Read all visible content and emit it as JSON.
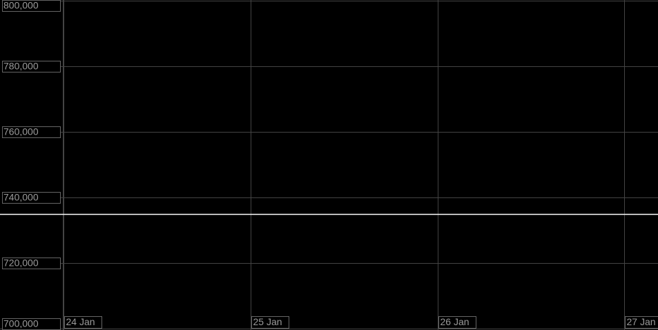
{
  "chart_data": {
    "type": "line",
    "x": [
      23.66,
      27.18
    ],
    "series": [
      {
        "color": "#ffffff",
        "values": [
          735000,
          735000
        ]
      }
    ],
    "xlim": [
      23.66,
      27.18
    ],
    "xticks": [
      {
        "value": 24,
        "label": "24 Jan"
      },
      {
        "value": 25,
        "label": "25 Jan"
      },
      {
        "value": 26,
        "label": "26 Jan"
      },
      {
        "value": 27,
        "label": "27 Jan"
      }
    ],
    "ylim": [
      700000,
      800000
    ],
    "yticks": [
      {
        "value": 700000,
        "label": "700,000"
      },
      {
        "value": 720000,
        "label": "720,000"
      },
      {
        "value": 740000,
        "label": "740,000"
      },
      {
        "value": 760000,
        "label": "760,000"
      },
      {
        "value": 780000,
        "label": "780,000"
      },
      {
        "value": 800000,
        "label": "800,000"
      }
    ],
    "grid": true
  }
}
